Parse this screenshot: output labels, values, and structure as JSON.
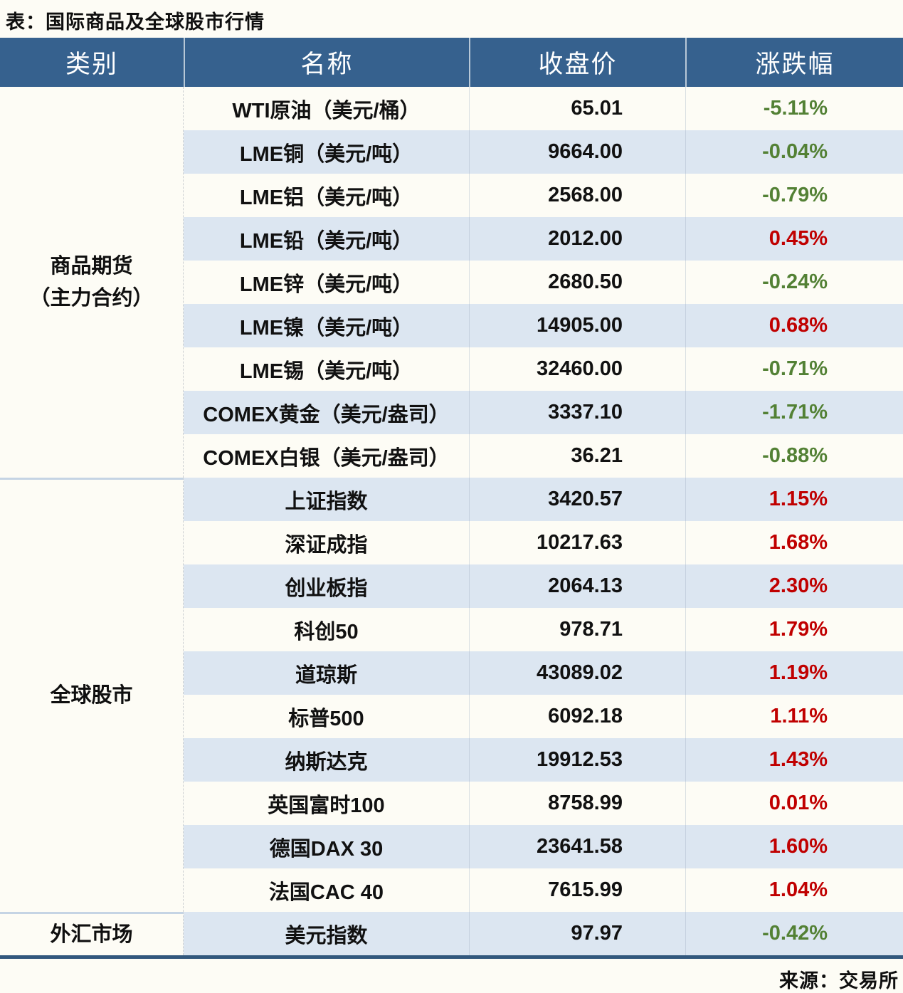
{
  "title": "表：国际商品及全球股市行情",
  "source": "来源：交易所",
  "columns": [
    "类别",
    "名称",
    "收盘价",
    "涨跌幅"
  ],
  "colors": {
    "header_bg": "#36618e",
    "alt_row_bg": "#dce6f1",
    "positive_change": "#c00000",
    "negative_change": "#538135",
    "bottom_border": "#32587d",
    "section_divider": "#c5d4e4",
    "page_bg": "#fdfcf5"
  },
  "sections": [
    {
      "category": "商品期货",
      "category_line2": "（主力合约）",
      "rows": [
        {
          "name": "WTI原油（美元/桶）",
          "close": "65.01",
          "change": "-5.11%",
          "dir": "down"
        },
        {
          "name": "LME铜（美元/吨）",
          "close": "9664.00",
          "change": "-0.04%",
          "dir": "down"
        },
        {
          "name": "LME铝（美元/吨）",
          "close": "2568.00",
          "change": "-0.79%",
          "dir": "down"
        },
        {
          "name": "LME铅（美元/吨）",
          "close": "2012.00",
          "change": "0.45%",
          "dir": "up"
        },
        {
          "name": "LME锌（美元/吨）",
          "close": "2680.50",
          "change": "-0.24%",
          "dir": "down"
        },
        {
          "name": "LME镍（美元/吨）",
          "close": "14905.00",
          "change": "0.68%",
          "dir": "up"
        },
        {
          "name": "LME锡（美元/吨）",
          "close": "32460.00",
          "change": "-0.71%",
          "dir": "down"
        },
        {
          "name": "COMEX黄金（美元/盎司）",
          "close": "3337.10",
          "change": "-1.71%",
          "dir": "down"
        },
        {
          "name": "COMEX白银（美元/盎司）",
          "close": "36.21",
          "change": "-0.88%",
          "dir": "down"
        }
      ]
    },
    {
      "category": "全球股市",
      "rows": [
        {
          "name": "上证指数",
          "close": "3420.57",
          "change": "1.15%",
          "dir": "up"
        },
        {
          "name": "深证成指",
          "close": "10217.63",
          "change": "1.68%",
          "dir": "up"
        },
        {
          "name": "创业板指",
          "close": "2064.13",
          "change": "2.30%",
          "dir": "up"
        },
        {
          "name": "科创50",
          "close": "978.71",
          "change": "1.79%",
          "dir": "up"
        },
        {
          "name": "道琼斯",
          "close": "43089.02",
          "change": "1.19%",
          "dir": "up"
        },
        {
          "name": "标普500",
          "close": "6092.18",
          "change": "1.11%",
          "dir": "up"
        },
        {
          "name": "纳斯达克",
          "close": "19912.53",
          "change": "1.43%",
          "dir": "up"
        },
        {
          "name": "英国富时100",
          "close": "8758.99",
          "change": "0.01%",
          "dir": "up"
        },
        {
          "name": "德国DAX 30",
          "close": "23641.58",
          "change": "1.60%",
          "dir": "up"
        },
        {
          "name": "法国CAC 40",
          "close": "7615.99",
          "change": "1.04%",
          "dir": "up"
        }
      ]
    },
    {
      "category": "外汇市场",
      "rows": [
        {
          "name": "美元指数",
          "close": "97.97",
          "change": "-0.42%",
          "dir": "down"
        }
      ]
    }
  ]
}
